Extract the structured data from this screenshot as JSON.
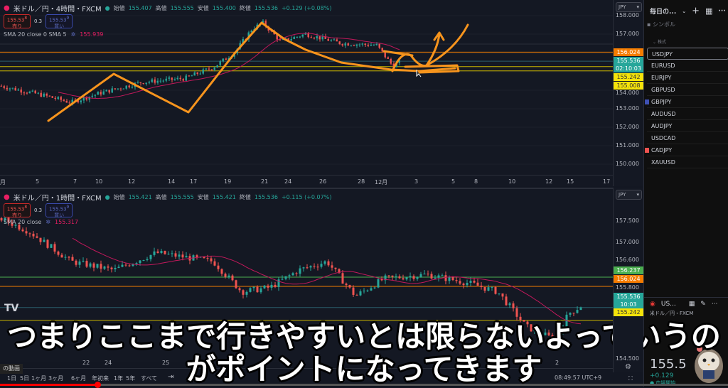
{
  "top_chart": {
    "title": "米ドル／円・4時間・FXCM",
    "ohlc": {
      "open_label": "始値",
      "open": "155.407",
      "high_label": "高値",
      "high": "155.555",
      "low_label": "安値",
      "low": "155.400",
      "close_label": "終値",
      "close": "155.536",
      "change": "+0.129 (+0.08%)"
    },
    "sell": {
      "price": "155.53",
      "sup": "8",
      "label": "売り"
    },
    "spread": "0.3",
    "buy": {
      "price": "155.53",
      "sup": "9",
      "label": "買い"
    },
    "indicator": {
      "label": "SMA 20 close 0 SMA 5",
      "value": "155.939"
    },
    "currency": "JPY",
    "price_ticks": [
      "158.000",
      "157.000",
      "154.000",
      "153.000",
      "152.000",
      "151.000",
      "150.000"
    ],
    "price_tags": [
      {
        "value": "156.024",
        "color": "#f57c00"
      },
      {
        "value": "155.536",
        "sub": "02:10:03",
        "color": "#26a69a"
      },
      {
        "value": "155.242",
        "color": "#f5e30a"
      },
      {
        "value": "155.008",
        "color": "#f5e30a"
      }
    ],
    "time_ticks": [
      "月",
      "5",
      "7",
      "10",
      "12",
      "14",
      "17",
      "19",
      "21",
      "24",
      "26",
      "28",
      "12月",
      "3",
      "5",
      "8",
      "10",
      "12",
      "15",
      "17"
    ]
  },
  "bottom_chart": {
    "title": "米ドル／円・1時間・FXCM",
    "ohlc": {
      "open_label": "始値",
      "open": "155.421",
      "high_label": "高値",
      "high": "155.555",
      "low_label": "安値",
      "low": "155.421",
      "close_label": "終値",
      "close": "155.536",
      "change": "+0.115 (+0.07%)"
    },
    "sell": {
      "price": "155.53",
      "sup": "8",
      "label": "売り"
    },
    "spread": "0.3",
    "buy": {
      "price": "155.53",
      "sup": "9",
      "label": "買い"
    },
    "indicator": {
      "label": "SMA 20 close",
      "value": "155.317"
    },
    "currency": "JPY",
    "price_ticks": [
      "157.500",
      "157.000",
      "156.600",
      "155.800",
      "154.500"
    ],
    "price_tags": [
      {
        "value": "156.237",
        "color": "#4caf50"
      },
      {
        "value": "156.024",
        "color": "#f57c00"
      },
      {
        "value": "155.536",
        "sub": "10:03",
        "color": "#26a69a"
      },
      {
        "value": "155.242",
        "color": "#f5e30a"
      }
    ],
    "time_ticks": [
      "22",
      "24",
      "25",
      "2"
    ]
  },
  "watchlist": {
    "title": "毎日の...",
    "column": "シンボル",
    "section": "株式",
    "items": [
      "USDJPY",
      "EURUSD",
      "EURJPY",
      "GBPUSD",
      "GBPJPY",
      "AUDUSD",
      "AUDJPY",
      "USDCAD",
      "CADJPY",
      "XAUUSD"
    ],
    "selected": "USDJPY",
    "flags": {
      "GBPJPY": "#3f51b5",
      "CADJPY": "#ef5350"
    }
  },
  "detail": {
    "symbol": "US...",
    "name": "米ドル／円・FXCM",
    "price": "155.5",
    "change": "+0.129",
    "status": "市場開始"
  },
  "toolbar": {
    "ranges": [
      "1日",
      "5日",
      "1ヶ月",
      "3ヶ月",
      "6ヶ月",
      "年初来",
      "1年",
      "5年",
      "すべて"
    ],
    "clock": "08:49:57 UTC+9",
    "video_tag": "の動画"
  },
  "subtitle": {
    "line1": "つまりここまで行きやすいとは限らないよっていうの",
    "line2": "がポイントになってきます"
  },
  "video_progress": 0.134
}
